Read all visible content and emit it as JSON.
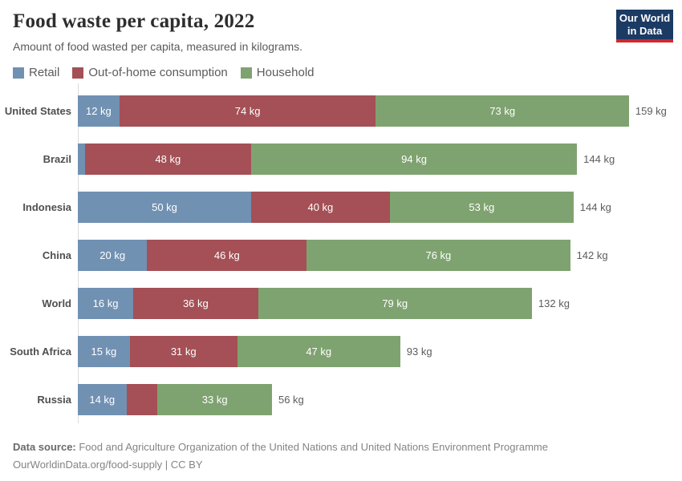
{
  "logo": {
    "line1": "Our World",
    "line2": "in Data"
  },
  "chart_data": {
    "type": "bar",
    "orientation": "horizontal",
    "stacked": true,
    "title": "Food waste per capita, 2022",
    "subtitle": "Amount of food wasted per capita, measured in kilograms.",
    "unit": "kg",
    "legend_position": "top",
    "xlim": [
      0,
      159
    ],
    "grid": false,
    "series": [
      {
        "name": "Retail",
        "color": "#7191b3"
      },
      {
        "name": "Out-of-home consumption",
        "color": "#a45056"
      },
      {
        "name": "Household",
        "color": "#7fa370"
      }
    ],
    "categories": [
      "United States",
      "Brazil",
      "Indonesia",
      "China",
      "World",
      "South Africa",
      "Russia"
    ],
    "rows": [
      {
        "category": "United States",
        "values": [
          12,
          74,
          73
        ],
        "segment_labels": [
          "12 kg",
          "74 kg",
          "73 kg"
        ],
        "total": 159,
        "total_label": "159 kg"
      },
      {
        "category": "Brazil",
        "values": [
          2,
          48,
          94
        ],
        "segment_labels": [
          null,
          "48 kg",
          "94 kg"
        ],
        "total": 144,
        "total_label": "144 kg"
      },
      {
        "category": "Indonesia",
        "values": [
          50,
          40,
          53
        ],
        "segment_labels": [
          "50 kg",
          "40 kg",
          "53 kg"
        ],
        "total": 144,
        "total_label": "144 kg"
      },
      {
        "category": "China",
        "values": [
          20,
          46,
          76
        ],
        "segment_labels": [
          "20 kg",
          "46 kg",
          "76 kg"
        ],
        "total": 142,
        "total_label": "142 kg"
      },
      {
        "category": "World",
        "values": [
          16,
          36,
          79
        ],
        "segment_labels": [
          "16 kg",
          "36 kg",
          "79 kg"
        ],
        "total": 132,
        "total_label": "132 kg"
      },
      {
        "category": "South Africa",
        "values": [
          15,
          31,
          47
        ],
        "segment_labels": [
          "15 kg",
          "31 kg",
          "47 kg"
        ],
        "total": 93,
        "total_label": "93 kg"
      },
      {
        "category": "Russia",
        "values": [
          14,
          9,
          33
        ],
        "segment_labels": [
          "14 kg",
          null,
          "33 kg"
        ],
        "total": 56,
        "total_label": "56 kg"
      }
    ]
  },
  "footer": {
    "source_label": "Data source:",
    "source_text": " Food and Agriculture Organization of the United Nations and United Nations Environment Programme",
    "link_text": "OurWorldinData.org/food-supply",
    "license_text": " | CC BY"
  }
}
